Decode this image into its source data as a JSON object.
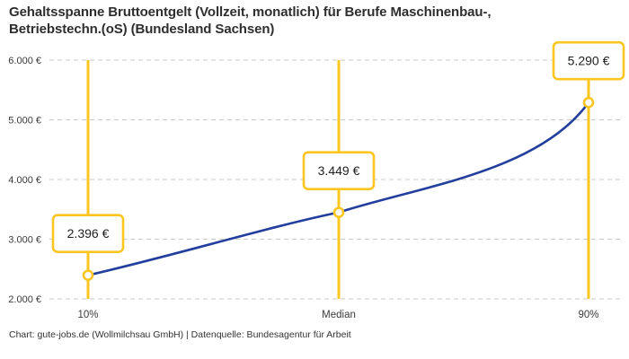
{
  "title": {
    "lines": [
      "Gehaltsspanne Bruttoentgelt (Vollzeit, monatlich) für Berufe Maschinenbau-,",
      "Betriebstechn.(oS) (Bundesland Sachsen)"
    ]
  },
  "footer": {
    "text": "Chart: gute-jobs.de (Wollmilchsau GmbH) | Datenquelle: Bundesagentur für Arbeit"
  },
  "chart_data": {
    "type": "line",
    "title": "Gehaltsspanne Bruttoentgelt (Vollzeit, monatlich) für Berufe Maschinenbau-, Betriebstechn.(oS) (Bundesland Sachsen)",
    "categories": [
      "10%",
      "Median",
      "90%"
    ],
    "values": [
      2396,
      3449,
      5290
    ],
    "value_labels": [
      "2.396 €",
      "3.449 €",
      "5.290 €"
    ],
    "yticks": [
      {
        "value": 2000,
        "label": "2.000 €"
      },
      {
        "value": 3000,
        "label": "3.000 €"
      },
      {
        "value": 4000,
        "label": "4.000 €"
      },
      {
        "value": 5000,
        "label": "5.000 €"
      },
      {
        "value": 6000,
        "label": "6.000 €"
      }
    ],
    "ylim": [
      2000,
      6000
    ],
    "xlabel": "",
    "ylabel": "",
    "grid": "dashed-horizontal",
    "legend": "none",
    "annotation_style": "value shown in yellow-bordered white box above each marker; yellow vertical guide line at each percentile",
    "colors": {
      "accent_yellow": "#fcc520",
      "line_blue": "#233f9d",
      "grid_gray": "#c9c9c9",
      "tick_text": "#3a3a3a",
      "value_text": "#1f1f1f",
      "background": "#ffffff"
    }
  }
}
